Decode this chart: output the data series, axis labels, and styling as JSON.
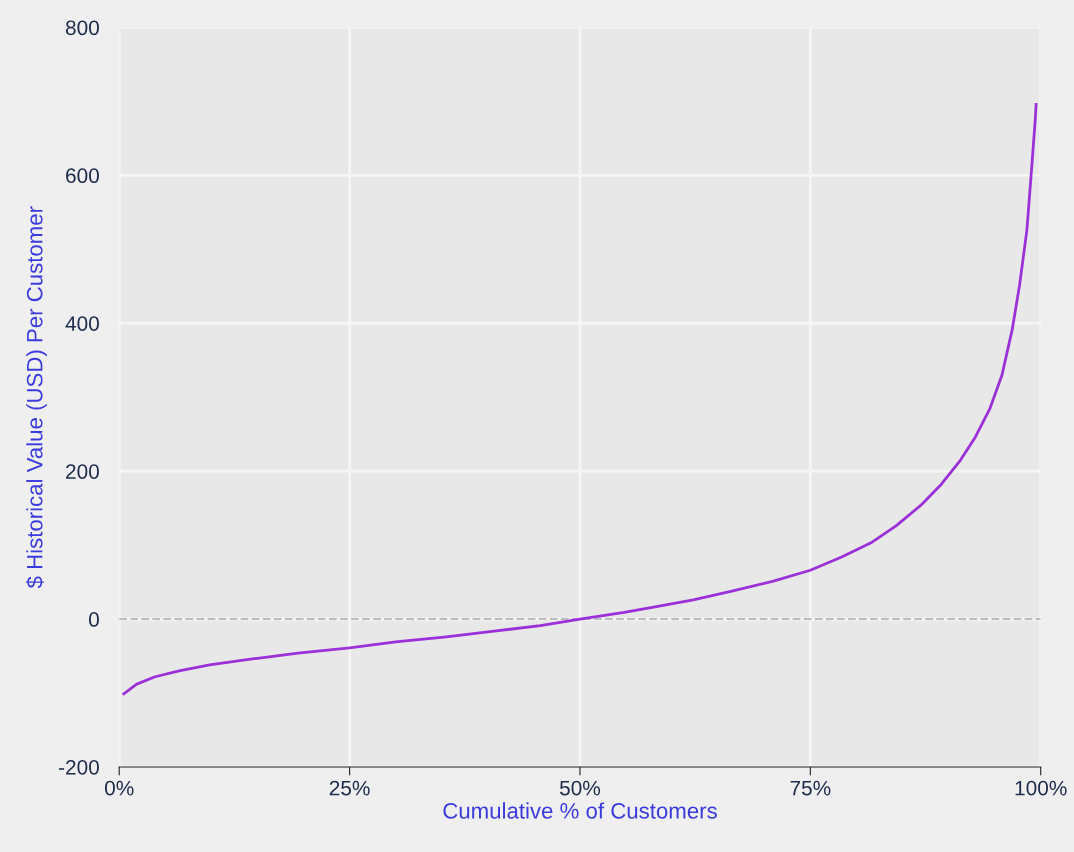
{
  "chart_data": {
    "type": "line",
    "xlabel": "Cumulative % of Customers",
    "ylabel": "$ Historical Value (USD) Per Customer",
    "xlim": [
      0,
      100
    ],
    "ylim": [
      -200,
      800
    ],
    "xticks": [
      {
        "value": 0,
        "label": "0%"
      },
      {
        "value": 25,
        "label": "25%"
      },
      {
        "value": 50,
        "label": "50%"
      },
      {
        "value": 75,
        "label": "75%"
      },
      {
        "value": 100,
        "label": "100%"
      }
    ],
    "yticks": [
      {
        "value": -200,
        "label": "-200"
      },
      0,
      200,
      400,
      600,
      800
    ],
    "grid": true,
    "legend": false,
    "marker": "none",
    "line_style": "solid",
    "ref_lines": [
      {
        "axis": "y",
        "value": 0,
        "color": "#bdbdbd",
        "line_style": "dashed"
      }
    ],
    "series": [
      {
        "color": "#9b30d9",
        "x": [
          0.5,
          1.9,
          3.9,
          6.5,
          9.8,
          15,
          19.4,
          25,
          30,
          35.5,
          40.9,
          45.7,
          50,
          54.8,
          58,
          62.3,
          66.6,
          70.9,
          75,
          78.4,
          81.7,
          84.3,
          87,
          89.2,
          91.3,
          92.9,
          94.5,
          95.8,
          96.9,
          97.7,
          98.5,
          99.0,
          99.4,
          99.5
        ],
        "values": [
          -101,
          -88,
          -78,
          -70,
          -62,
          -53,
          -46,
          -39,
          -31,
          -24,
          -16,
          -9,
          0,
          9,
          16,
          26,
          38,
          51,
          66,
          84,
          104,
          126,
          154,
          182,
          215,
          246,
          285,
          330,
          391,
          451,
          526,
          607,
          674,
          696
        ]
      }
    ]
  }
}
